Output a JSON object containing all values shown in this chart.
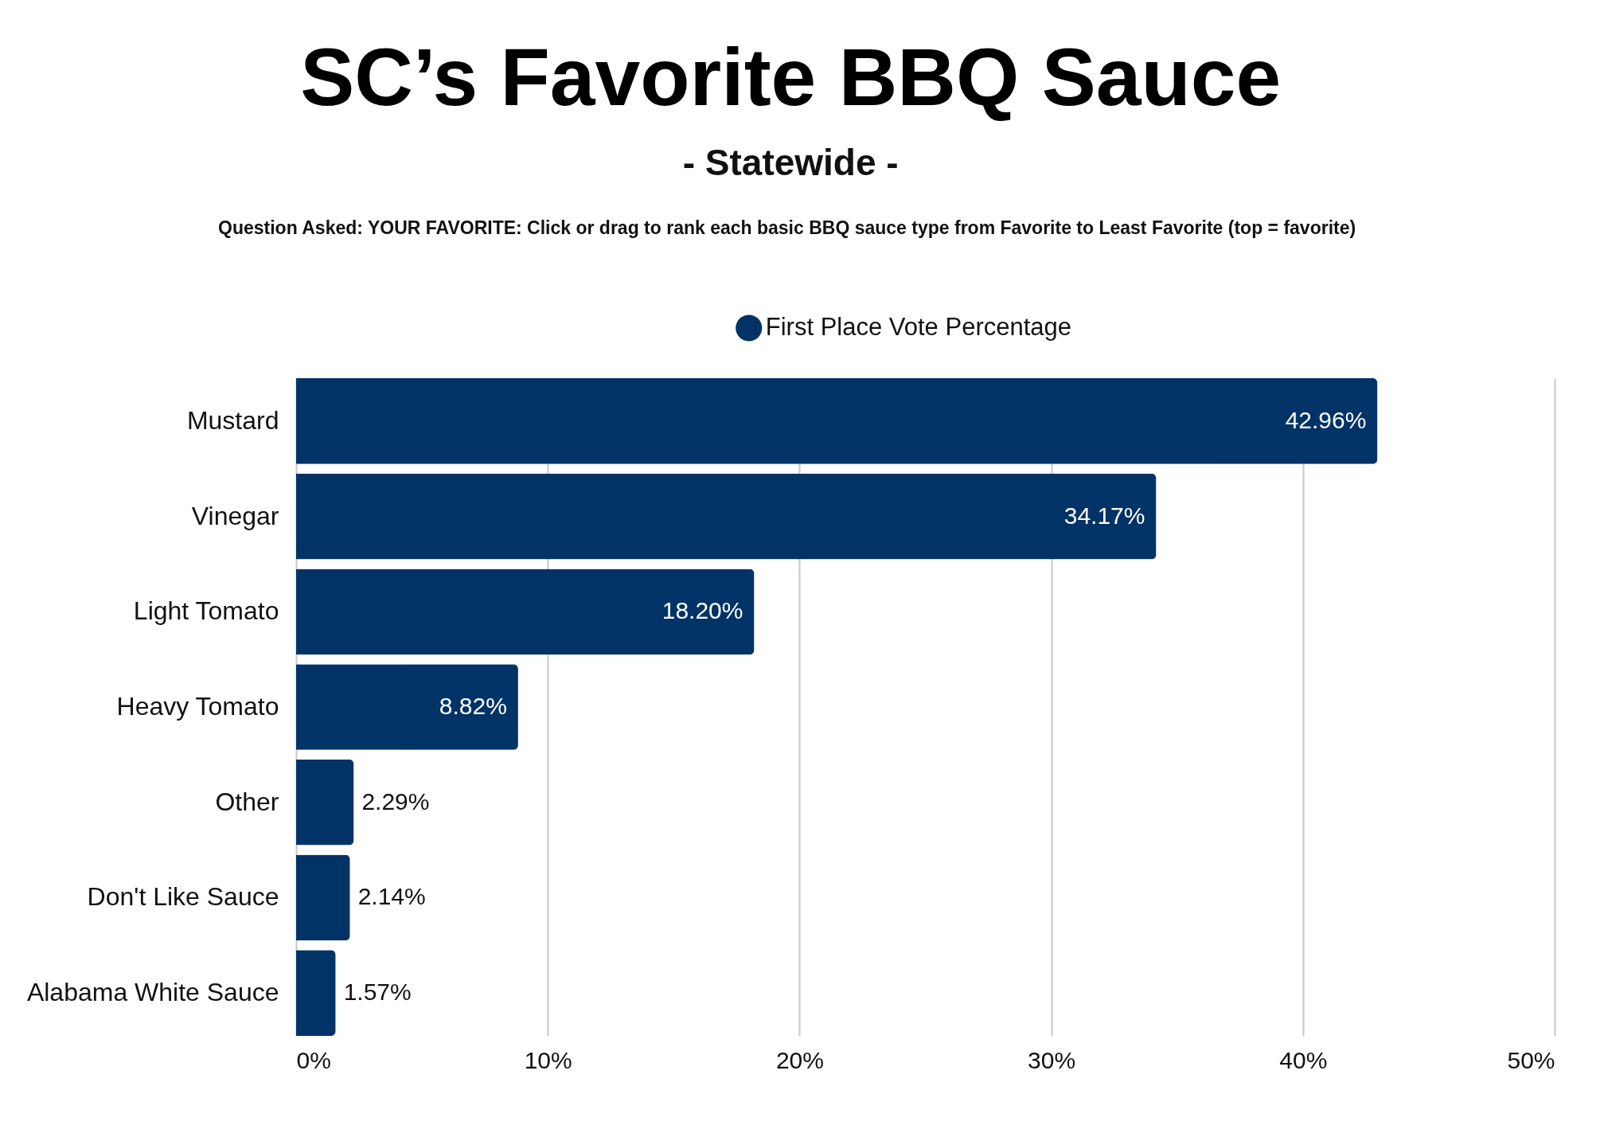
{
  "chart_data": {
    "type": "bar",
    "orientation": "horizontal",
    "title": "SC’s Favorite BBQ Sauce",
    "subtitle": "- Statewide -",
    "annotations": [
      "Question Asked: YOUR FAVORITE: Click or drag to rank each basic BBQ sauce type from Favorite to Least Favorite (top = favorite)"
    ],
    "categories": [
      "Mustard",
      "Vinegar",
      "Light Tomato",
      "Heavy Tomato",
      "Other",
      "Don't Like Sauce",
      "Alabama White Sauce"
    ],
    "series": [
      {
        "name": "First Place Vote Percentage",
        "color": "#023366",
        "values": [
          42.96,
          34.17,
          18.2,
          8.82,
          2.29,
          2.14,
          1.57
        ],
        "value_labels": [
          "42.96%",
          "34.17%",
          "18.20%",
          "8.82%",
          "2.29%",
          "2.14%",
          "1.57%"
        ]
      }
    ],
    "xlim": [
      0,
      50
    ],
    "xticks": [
      {
        "value": 0,
        "label": "0%"
      },
      {
        "value": 10,
        "label": "10%"
      },
      {
        "value": 20,
        "label": "20%"
      },
      {
        "value": 30,
        "label": "30%"
      },
      {
        "value": 40,
        "label": "40%"
      },
      {
        "value": 50,
        "label": "50%"
      }
    ],
    "grid": "x",
    "legend": "top"
  }
}
